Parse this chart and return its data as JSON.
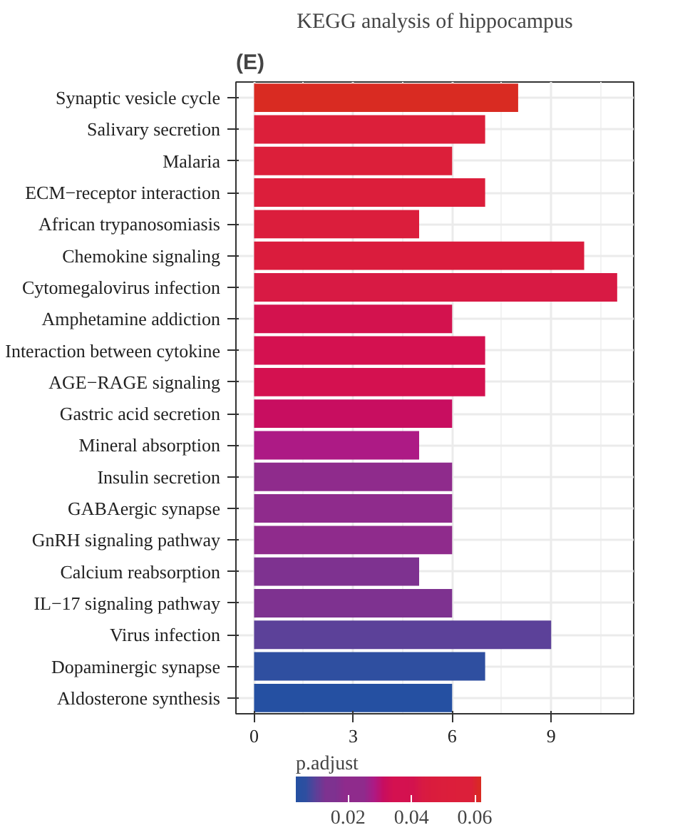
{
  "chart_data": {
    "type": "bar",
    "orientation": "horizontal",
    "title": "KEGG analysis of hippocampus",
    "annotations": [
      "(E)"
    ],
    "categories": [
      "Synaptic vesicle cycle",
      "Salivary secretion",
      "Malaria",
      "ECM−receptor interaction",
      "African trypanosomiasis",
      "Chemokine signaling",
      "Cytomegalovirus infection",
      "Amphetamine addiction",
      "Interaction between cytokine",
      "AGE−RAGE signaling",
      "Gastric acid secretion",
      "Mineral absorption",
      "Insulin secretion",
      "GABAergic synapse",
      "GnRH signaling pathway",
      "Calcium reabsorption",
      "IL−17 signaling pathway",
      "Virus infection",
      "Dopaminergic synapse",
      "Aldosterone synthesis"
    ],
    "values": [
      8,
      7,
      6,
      7,
      5,
      10,
      11,
      6,
      7,
      7,
      6,
      5,
      6,
      6,
      6,
      5,
      6,
      9,
      7,
      6
    ],
    "colors": [
      "#d92b22",
      "#dc1f3a",
      "#dc1f3a",
      "#dc1e3b",
      "#db1e3c",
      "#da1c3d",
      "#d81a44",
      "#d3124e",
      "#d41150",
      "#d41150",
      "#c80e60",
      "#ad1a85",
      "#8f2b8c",
      "#8f2b8c",
      "#8f2b8c",
      "#7e3290",
      "#7e3290",
      "#5c4199",
      "#2f4fa0",
      "#2550a2"
    ],
    "xlim": [
      -0.55,
      11.5
    ],
    "xticks": [
      0,
      3,
      6,
      9
    ],
    "grid": true,
    "clabel": "p.adjust",
    "clim": [
      0.0035,
      0.062
    ],
    "cticks": [
      0.02,
      0.04,
      0.06
    ]
  }
}
